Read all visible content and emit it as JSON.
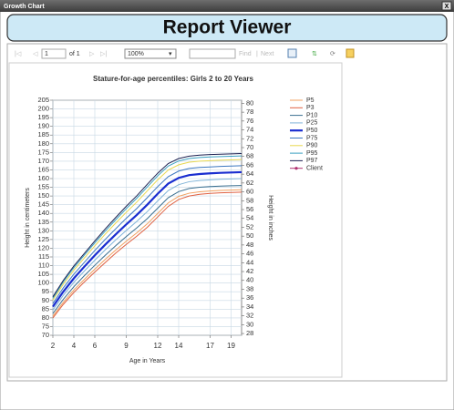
{
  "window": {
    "title": "Growth Chart",
    "close": "X"
  },
  "header": {
    "title": "Report Viewer"
  },
  "toolbar": {
    "page": "1",
    "of": "of 1",
    "zoom": "100%",
    "find": "Find",
    "separator": "|",
    "next": "Next"
  },
  "chart_data": {
    "type": "line",
    "title": "Stature-for-age percentiles: Girls 2 to 20 Years",
    "x_label": "Age in Years",
    "y_label": "Height in centimeters",
    "y2_label": "Height in inches",
    "x": [
      2,
      3,
      4,
      5,
      6,
      7,
      8,
      9,
      10,
      11,
      12,
      13,
      14,
      15,
      16,
      17,
      18,
      19,
      20
    ],
    "xlim": [
      2,
      20
    ],
    "xticks": [
      2,
      4,
      6,
      9,
      12,
      14,
      17,
      19
    ],
    "ylim": [
      70,
      205
    ],
    "yticks": [
      70,
      75,
      80,
      85,
      90,
      95,
      100,
      105,
      110,
      115,
      120,
      125,
      130,
      135,
      140,
      145,
      150,
      155,
      160,
      165,
      170,
      175,
      180,
      185,
      190,
      195,
      200,
      205
    ],
    "y2lim": [
      27.6,
      80.7
    ],
    "y2ticks": [
      28,
      30,
      32,
      34,
      36,
      38,
      40,
      42,
      44,
      46,
      48,
      50,
      52,
      54,
      56,
      58,
      60,
      62,
      64,
      66,
      68,
      70,
      72,
      74,
      76,
      78,
      80
    ],
    "grid": true,
    "legend": "right",
    "series": [
      {
        "name": "P5",
        "color": "#f0a060",
        "line_width": 1,
        "values": [
          81.0,
          89.0,
          96.0,
          102.1,
          108.0,
          113.6,
          119.0,
          124.0,
          128.8,
          134.0,
          140.0,
          146.0,
          149.8,
          151.6,
          152.4,
          152.9,
          153.2,
          153.4,
          153.6
        ]
      },
      {
        "name": "P3",
        "color": "#e06040",
        "line_width": 1,
        "values": [
          80.0,
          87.8,
          94.6,
          100.6,
          106.3,
          111.8,
          117.2,
          122.2,
          126.9,
          132.0,
          138.0,
          144.0,
          148.0,
          150.0,
          151.0,
          151.5,
          151.8,
          152.0,
          152.2
        ]
      },
      {
        "name": "P10",
        "color": "#3a6f90",
        "line_width": 1,
        "values": [
          82.5,
          90.7,
          97.9,
          104.2,
          110.2,
          116.0,
          121.5,
          126.7,
          131.7,
          137.0,
          143.0,
          149.0,
          152.5,
          154.3,
          155.0,
          155.4,
          155.7,
          155.9,
          156.0
        ]
      },
      {
        "name": "P25",
        "color": "#80b4d8",
        "line_width": 1,
        "values": [
          84.5,
          93.0,
          100.4,
          106.9,
          113.1,
          119.1,
          124.8,
          130.2,
          135.4,
          141.0,
          147.2,
          153.1,
          156.5,
          158.2,
          158.9,
          159.3,
          159.6,
          159.8,
          160.0
        ]
      },
      {
        "name": "P50",
        "color": "#1a2ed0",
        "line_width": 2.2,
        "values": [
          86.4,
          95.1,
          102.7,
          109.4,
          115.9,
          122.1,
          128.0,
          133.7,
          139.1,
          145.0,
          151.3,
          157.1,
          160.4,
          162.0,
          162.6,
          163.0,
          163.3,
          163.5,
          163.7
        ]
      },
      {
        "name": "P75",
        "color": "#3c78c0",
        "line_width": 1,
        "values": [
          88.3,
          97.3,
          105.1,
          111.9,
          118.7,
          125.1,
          131.2,
          137.2,
          142.8,
          149.0,
          155.4,
          161.1,
          164.3,
          165.8,
          166.4,
          166.7,
          167.0,
          167.2,
          167.4
        ]
      },
      {
        "name": "P90",
        "color": "#e8d850",
        "line_width": 1,
        "values": [
          90.2,
          99.4,
          107.4,
          114.4,
          121.4,
          128.1,
          134.5,
          140.6,
          146.5,
          152.9,
          159.3,
          164.9,
          167.9,
          169.4,
          170.0,
          170.3,
          170.5,
          170.7,
          170.9
        ]
      },
      {
        "name": "P95",
        "color": "#3aa0c0",
        "line_width": 1,
        "values": [
          91.3,
          100.7,
          108.8,
          116.0,
          123.1,
          129.9,
          136.4,
          142.7,
          148.7,
          155.2,
          161.6,
          167.2,
          170.1,
          171.5,
          172.1,
          172.4,
          172.6,
          172.8,
          173.0
        ]
      },
      {
        "name": "P97",
        "color": "#1c2050",
        "line_width": 1,
        "values": [
          92.1,
          101.6,
          109.8,
          117.0,
          124.2,
          131.1,
          137.7,
          144.1,
          150.1,
          156.7,
          163.1,
          168.6,
          171.5,
          172.9,
          173.5,
          173.8,
          174.0,
          174.2,
          174.4
        ]
      },
      {
        "name": "Client",
        "color": "#b03070",
        "line_width": 1,
        "values": [
          null,
          null,
          null,
          null,
          null,
          null,
          null,
          null,
          null,
          null,
          null,
          null,
          null,
          null,
          null,
          null,
          null,
          null,
          null
        ]
      }
    ]
  }
}
